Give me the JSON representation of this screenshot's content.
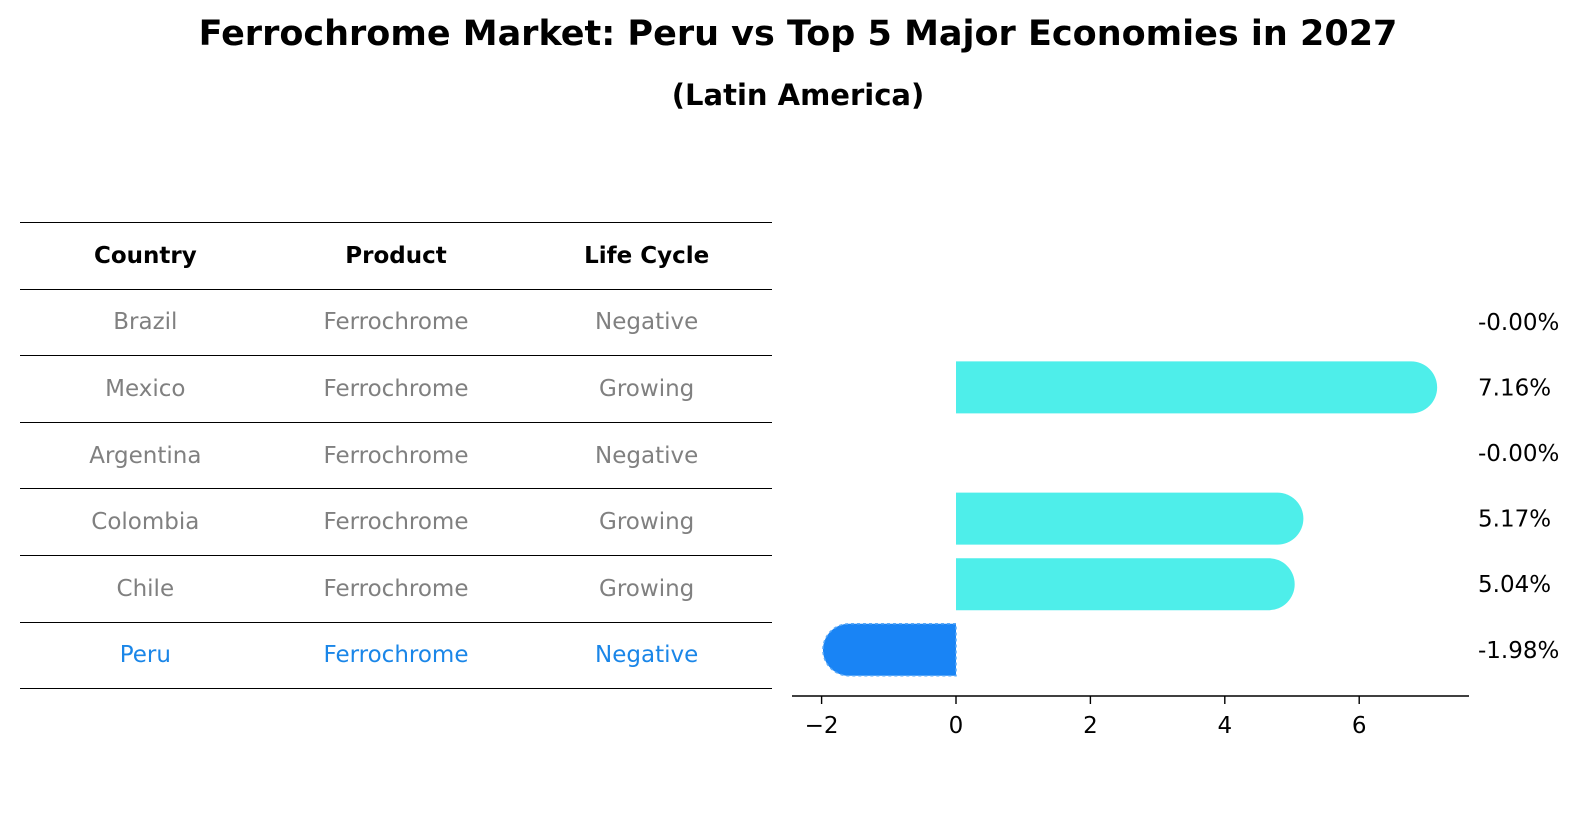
{
  "title": "Ferrochrome Market: Peru vs Top 5 Major Economies in 2027",
  "subtitle": "(Latin America)",
  "table": {
    "headers": [
      "Country",
      "Product",
      "Life Cycle"
    ],
    "rows": [
      [
        "Brazil",
        "Ferrochrome",
        "Negative"
      ],
      [
        "Mexico",
        "Ferrochrome",
        "Growing"
      ],
      [
        "Argentina",
        "Ferrochrome",
        "Negative"
      ],
      [
        "Colombia",
        "Ferrochrome",
        "Growing"
      ],
      [
        "Chile",
        "Ferrochrome",
        "Growing"
      ],
      [
        "Peru",
        "Ferrochrome",
        "Negative"
      ]
    ],
    "highlight_row": "Peru",
    "text_color": "#808080",
    "highlight_color": "#1a86e8"
  },
  "chart_data": {
    "type": "bar",
    "orientation": "horizontal",
    "categories": [
      "Brazil",
      "Mexico",
      "Argentina",
      "Colombia",
      "Chile",
      "Peru"
    ],
    "values": [
      -0.0,
      7.16,
      -0.0,
      5.17,
      5.04,
      -1.98
    ],
    "value_labels": [
      "-0.00%",
      "7.16%",
      "-0.00%",
      "5.17%",
      "5.04%",
      "-1.98%"
    ],
    "xticks": [
      "−2",
      "0",
      "2",
      "4",
      "6"
    ],
    "xlim": [
      -2.4,
      7.6
    ],
    "grid": false,
    "colors": {
      "positive": "#4eeeea",
      "negative": "#1984f5"
    }
  }
}
